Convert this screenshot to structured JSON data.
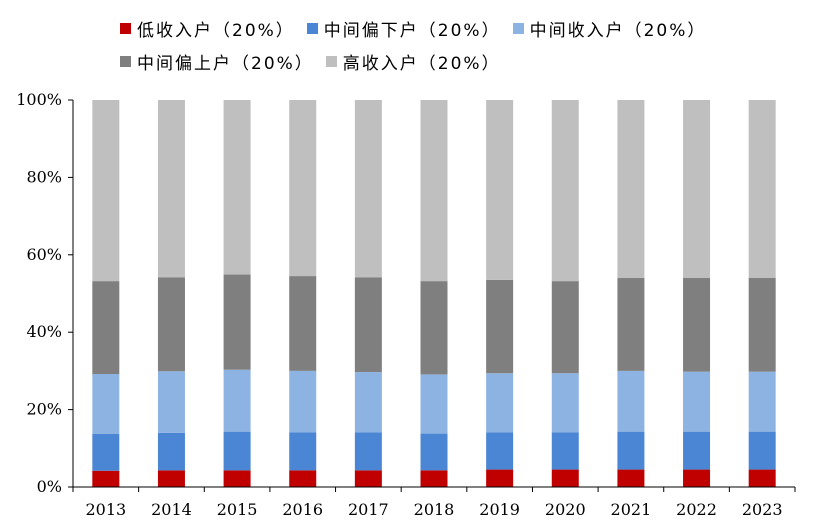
{
  "chart_data": {
    "type": "bar",
    "stacked": true,
    "percent": true,
    "title": "",
    "xlabel": "",
    "ylabel": "",
    "ylim": [
      0,
      100
    ],
    "yticks": [
      "0%",
      "20%",
      "40%",
      "60%",
      "80%",
      "100%"
    ],
    "categories": [
      "2013",
      "2014",
      "2015",
      "2016",
      "2017",
      "2018",
      "2019",
      "2020",
      "2021",
      "2022",
      "2023"
    ],
    "legend_position": "top",
    "grid": false,
    "series": [
      {
        "name": "低收入户（20%）",
        "color": "#c00000",
        "values": [
          4.2,
          4.3,
          4.3,
          4.3,
          4.3,
          4.3,
          4.5,
          4.5,
          4.5,
          4.5,
          4.5
        ]
      },
      {
        "name": "中间偏下户（20%）",
        "color": "#4a86d4",
        "values": [
          9.5,
          9.7,
          10.0,
          9.8,
          9.8,
          9.5,
          9.6,
          9.6,
          9.8,
          9.8,
          9.8
        ]
      },
      {
        "name": "中间收入户（20%）",
        "color": "#8db3e2",
        "values": [
          15.5,
          15.9,
          16.0,
          15.9,
          15.6,
          15.3,
          15.3,
          15.3,
          15.7,
          15.5,
          15.5
        ]
      },
      {
        "name": "中间偏上户（20%）",
        "color": "#7f7f7f",
        "values": [
          24.0,
          24.3,
          24.6,
          24.5,
          24.5,
          24.1,
          24.1,
          23.8,
          24.0,
          24.2,
          24.2
        ]
      },
      {
        "name": "高收入户（20%）",
        "color": "#bfbfbf",
        "values": [
          46.8,
          45.8,
          45.1,
          45.5,
          45.8,
          46.8,
          46.5,
          46.8,
          46.0,
          46.0,
          46.0
        ]
      }
    ]
  }
}
